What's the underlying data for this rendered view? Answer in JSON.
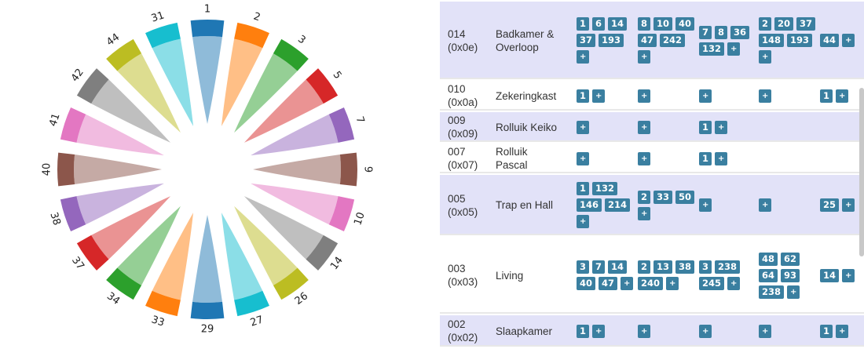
{
  "chord": {
    "groups": [
      {
        "label": "1",
        "color": "#1f77b4",
        "light": "#8fbbd9"
      },
      {
        "label": "2",
        "color": "#ff7f0e",
        "light": "#ffbf86"
      },
      {
        "label": "3",
        "color": "#2ca02c",
        "light": "#95cf95"
      },
      {
        "label": "5",
        "color": "#d62728",
        "light": "#ea9393"
      },
      {
        "label": "7",
        "color": "#9467bd",
        "light": "#c9b3de"
      },
      {
        "label": "9",
        "color": "#8c564b",
        "light": "#c5aaa5"
      },
      {
        "label": "10",
        "color": "#e377c2",
        "light": "#f1bbe0"
      },
      {
        "label": "14",
        "color": "#7f7f7f",
        "light": "#bfbfbf"
      },
      {
        "label": "26",
        "color": "#bcbd22",
        "light": "#dddd90"
      },
      {
        "label": "27",
        "color": "#17becf",
        "light": "#8bdee7"
      },
      {
        "label": "29",
        "color": "#1f77b4",
        "light": "#8fbbd9"
      },
      {
        "label": "33",
        "color": "#ff7f0e",
        "light": "#ffbf86"
      },
      {
        "label": "34",
        "color": "#2ca02c",
        "light": "#95cf95"
      },
      {
        "label": "37",
        "color": "#d62728",
        "light": "#ea9393"
      },
      {
        "label": "38",
        "color": "#9467bd",
        "light": "#c9b3de"
      },
      {
        "label": "40",
        "color": "#8c564b",
        "light": "#c5aaa5"
      },
      {
        "label": "41",
        "color": "#e377c2",
        "light": "#f1bbe0"
      },
      {
        "label": "42",
        "color": "#7f7f7f",
        "light": "#bfbfbf"
      },
      {
        "label": "44",
        "color": "#bcbd22",
        "light": "#dddd90"
      },
      {
        "label": "31",
        "color": "#17becf",
        "light": "#8bdee7"
      }
    ]
  },
  "table": {
    "plus_label": "+",
    "rows": [
      {
        "id": "014",
        "hex": "(0x0e)",
        "name_lines": [
          "Badkamer &",
          "Overloop"
        ],
        "groups": [
          [
            "1",
            "6",
            "14",
            "37",
            "193",
            "+"
          ],
          [
            "8",
            "10",
            "40",
            "47",
            "242",
            "+"
          ],
          [
            "7",
            "8",
            "36",
            "132",
            "+"
          ],
          [
            "2",
            "20",
            "37",
            "148",
            "193",
            "+"
          ],
          [
            "44",
            "+"
          ]
        ]
      },
      {
        "id": "010",
        "hex": "(0x0a)",
        "name_lines": [
          "Zekeringkast"
        ],
        "groups": [
          [
            "1",
            "+"
          ],
          [
            "+"
          ],
          [
            "+"
          ],
          [
            "+"
          ],
          [
            "1",
            "+"
          ]
        ]
      },
      {
        "id": "009",
        "hex": "(0x09)",
        "name_lines": [
          "Rolluik Keiko"
        ],
        "groups": [
          [
            "+"
          ],
          [
            "+"
          ],
          [
            "1",
            "+"
          ],
          [],
          []
        ]
      },
      {
        "id": "007",
        "hex": "(0x07)",
        "name_lines": [
          "Rolluik",
          "Pascal"
        ],
        "groups": [
          [
            "+"
          ],
          [
            "+"
          ],
          [
            "1",
            "+"
          ],
          [],
          []
        ]
      },
      {
        "id": "005",
        "hex": "(0x05)",
        "name_lines": [
          "Trap en Hall"
        ],
        "groups": [
          [
            "1",
            "132",
            "146",
            "214",
            "+"
          ],
          [
            "2",
            "33",
            "50",
            "+"
          ],
          [
            "+"
          ],
          [
            "+"
          ],
          [
            "25",
            "+"
          ]
        ]
      },
      {
        "id": "003",
        "hex": "(0x03)",
        "name_lines": [
          "Living"
        ],
        "groups": [
          [
            "3",
            "7",
            "14",
            "40",
            "47",
            "+"
          ],
          [
            "2",
            "13",
            "38",
            "240",
            "+"
          ],
          [
            "3",
            "238",
            "245",
            "+"
          ],
          [
            "48",
            "62",
            "64",
            "93",
            "238",
            "+"
          ],
          [
            "14",
            "+"
          ]
        ]
      },
      {
        "id": "002",
        "hex": "(0x02)",
        "name_lines": [
          "Slaapkamer"
        ],
        "groups": [
          [
            "1",
            "+"
          ],
          [
            "+"
          ],
          [
            "+"
          ],
          [
            "+"
          ],
          [
            "1",
            "+"
          ]
        ]
      }
    ]
  }
}
